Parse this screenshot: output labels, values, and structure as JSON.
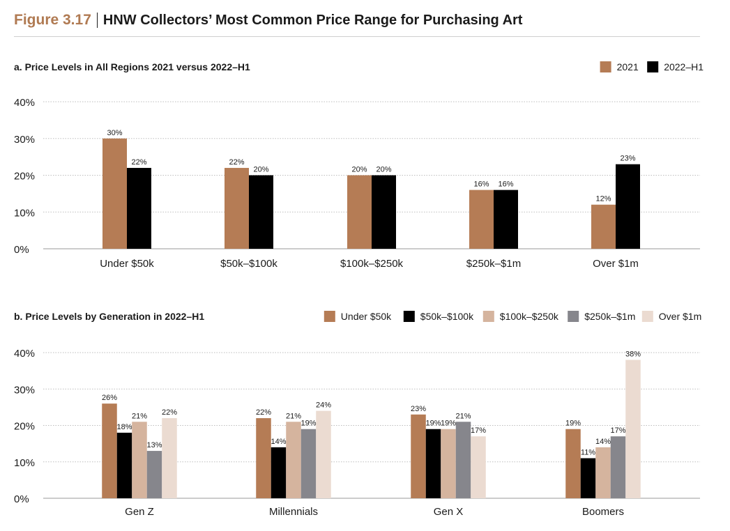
{
  "figure": {
    "label": "Figure 3.17",
    "title": "HNW Collectors’ Most Common Price Range for Purchasing Art"
  },
  "colors": {
    "accent": "#b07a52",
    "under_50k": "#b57c55",
    "black": "#000000",
    "light_tan": "#d5b49e",
    "gray": "#86868c",
    "pale": "#ebdbd1",
    "grid": "#bdbdbd"
  },
  "chart_data": [
    {
      "type": "bar",
      "title": "a. Price Levels in All Regions 2021 versus 2022–H1",
      "categories": [
        "Under $50k",
        "$50k–$100k",
        "$100k–$250k",
        "$250k–$1m",
        "Over $1m"
      ],
      "series": [
        {
          "name": "2021",
          "color": "#b57c55",
          "values": [
            30,
            22,
            20,
            16,
            12
          ],
          "labels": [
            "30%",
            "22%",
            "20%",
            "16%",
            "12%"
          ]
        },
        {
          "name": "2022–H1",
          "color": "#000000",
          "values": [
            22,
            20,
            20,
            16,
            23
          ],
          "labels": [
            "22%",
            "20%",
            "20%",
            "16%",
            "23%"
          ]
        }
      ],
      "yticks": [
        "0%",
        "10%",
        "20%",
        "30%",
        "40%"
      ],
      "ylim": [
        0,
        40
      ],
      "grid": true,
      "legend_position": "top-right"
    },
    {
      "type": "bar",
      "title": "b. Price Levels by Generation in 2022–H1",
      "categories": [
        "Gen Z",
        "Millennials",
        "Gen X",
        "Boomers"
      ],
      "series": [
        {
          "name": "Under $50k",
          "color": "#b57c55",
          "values": [
            26,
            22,
            23,
            19
          ],
          "labels": [
            "26%",
            "22%",
            "23%",
            "19%"
          ]
        },
        {
          "name": "$50k–$100k",
          "color": "#000000",
          "values": [
            18,
            14,
            19,
            11
          ],
          "labels": [
            "18%",
            "14%",
            "19%",
            "11%"
          ]
        },
        {
          "name": "$100k–$250k",
          "color": "#d5b49e",
          "values": [
            21,
            21,
            19,
            14
          ],
          "labels": [
            "21%",
            "21%",
            "19%",
            "14%"
          ]
        },
        {
          "name": "$250k–$1m",
          "color": "#86868c",
          "values": [
            13,
            19,
            21,
            17
          ],
          "labels": [
            "13%",
            "19%",
            "21%",
            "17%"
          ]
        },
        {
          "name": "Over $1m",
          "color": "#ebdbd1",
          "values": [
            22,
            24,
            17,
            38
          ],
          "labels": [
            "22%",
            "24%",
            "17%",
            "38%"
          ]
        }
      ],
      "yticks": [
        "0%",
        "10%",
        "20%",
        "30%",
        "40%"
      ],
      "ylim": [
        0,
        40
      ],
      "grid": true,
      "legend_position": "top-right"
    }
  ]
}
